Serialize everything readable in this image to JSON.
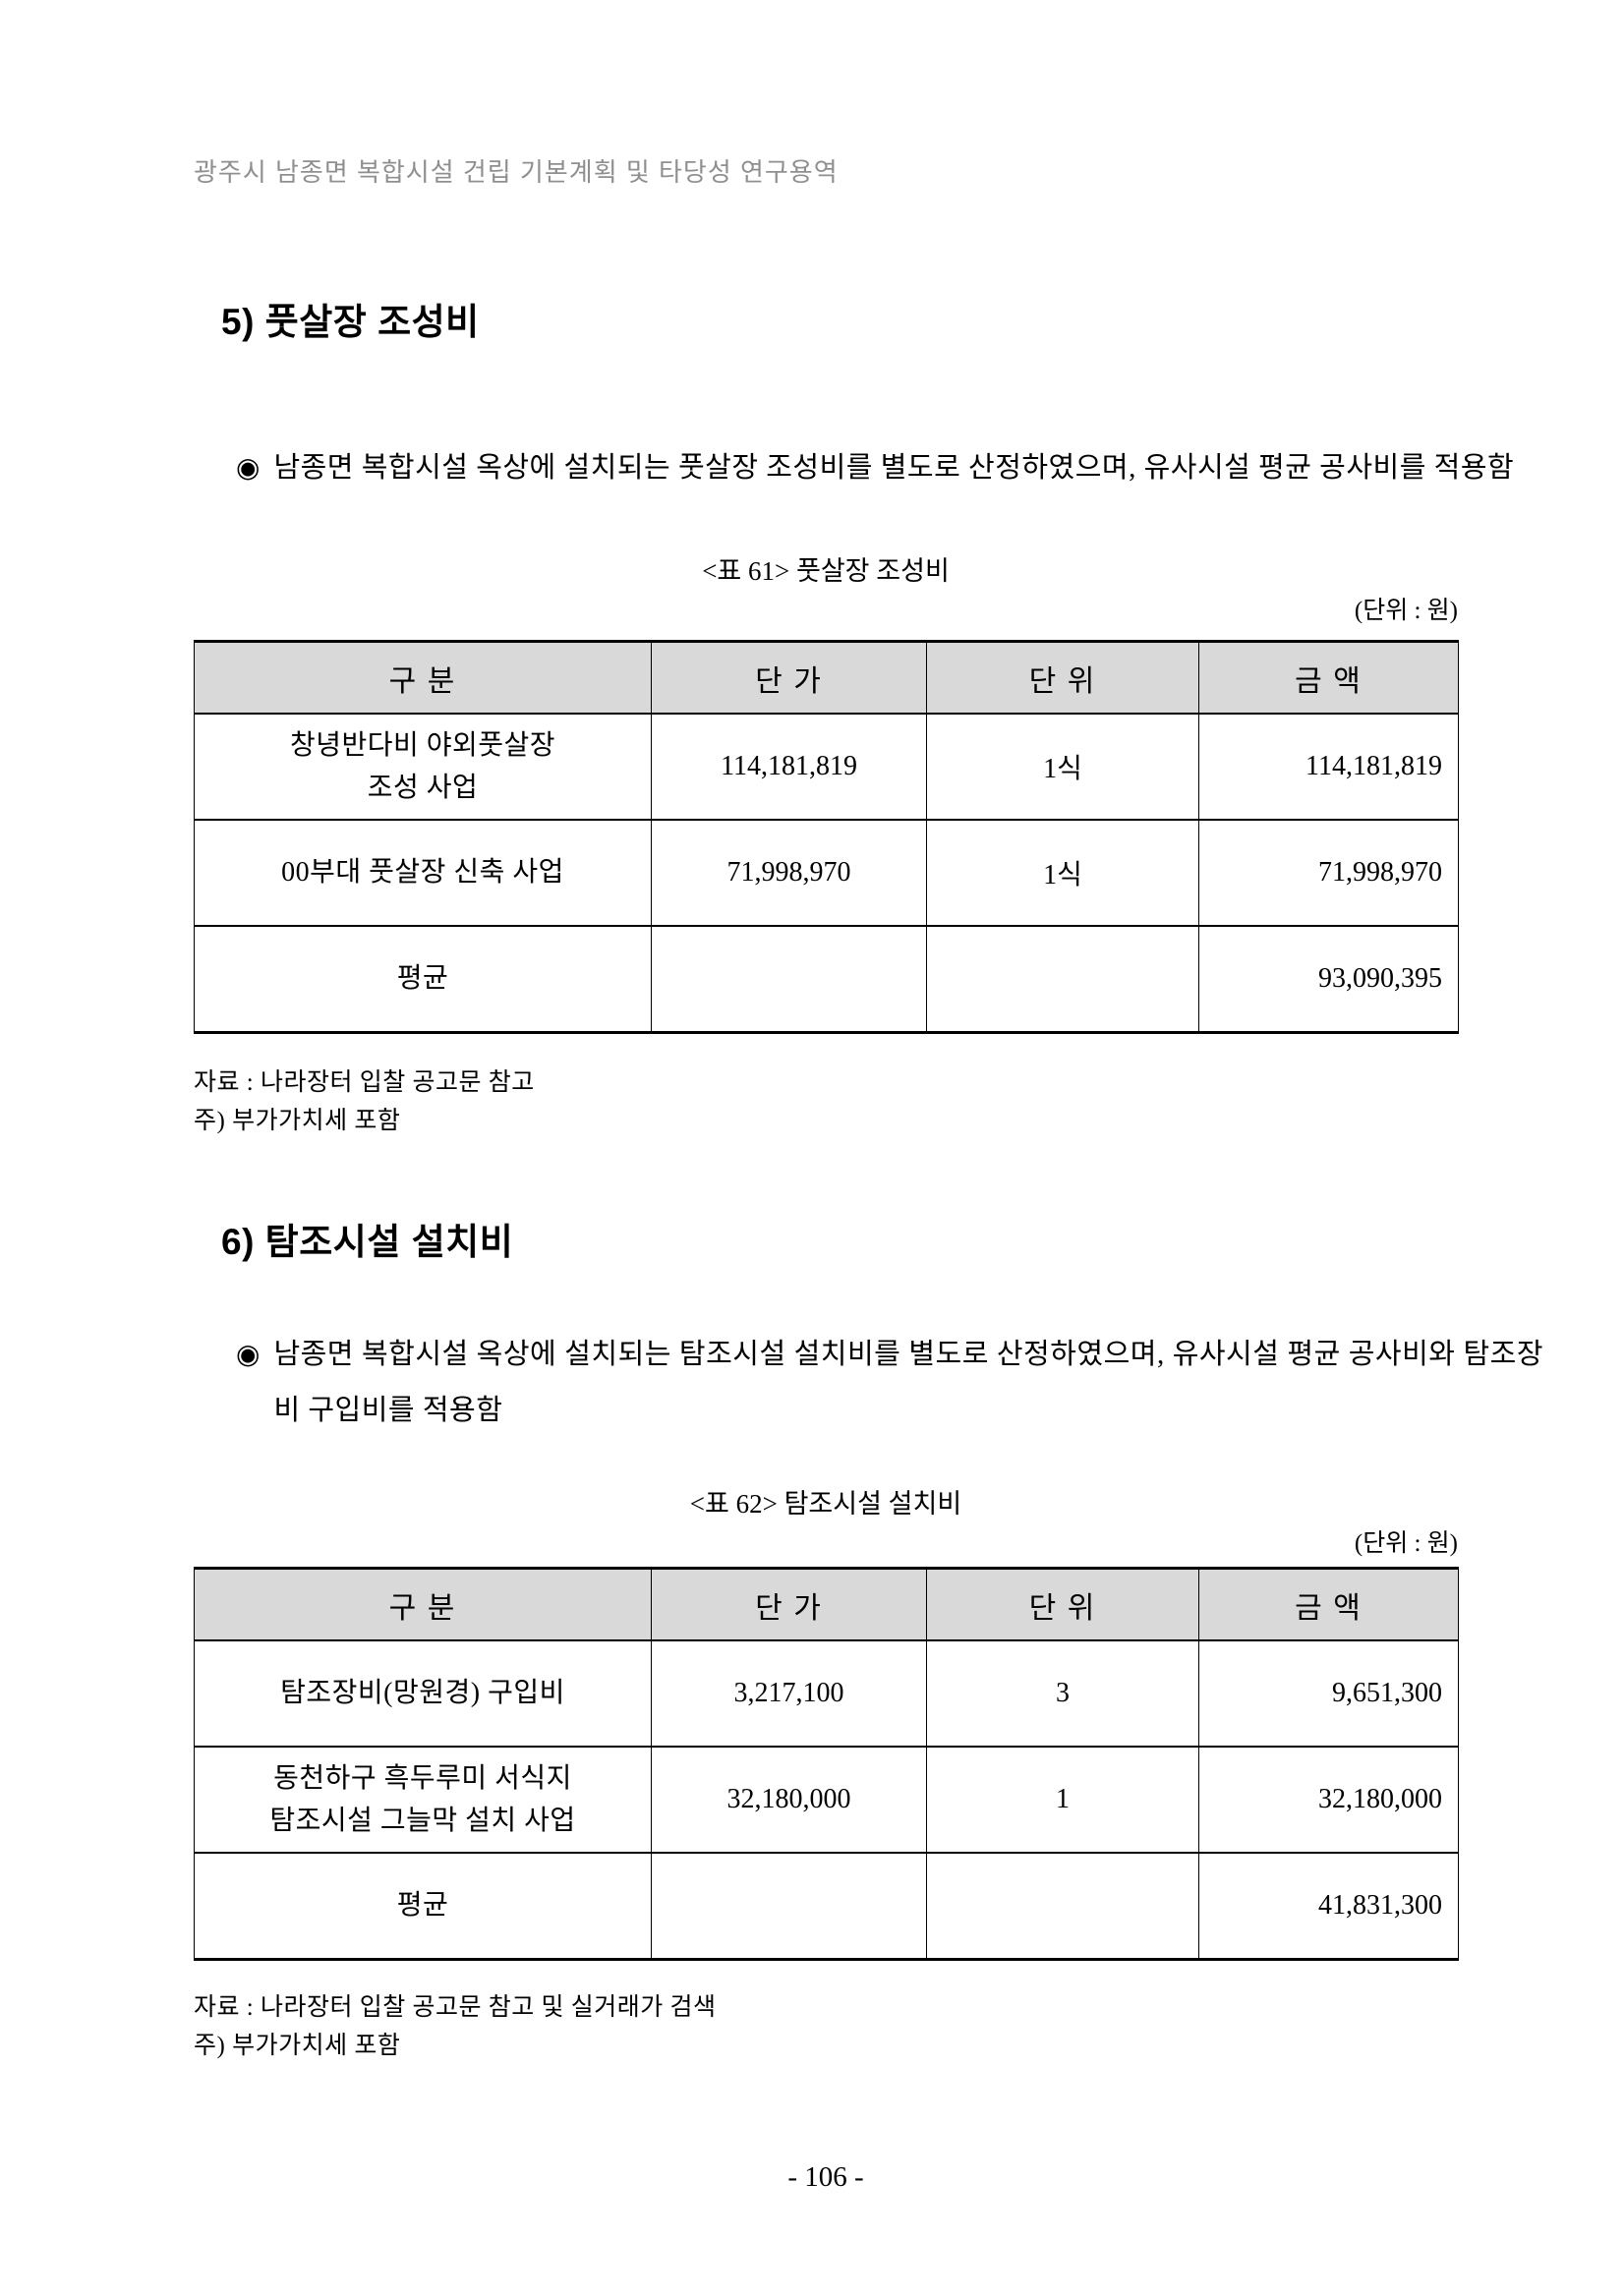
{
  "page": {
    "running_header": "광주시 남종면 복합시설 건립 기본계획 및 타당성 연구용역",
    "page_number": "- 106 -"
  },
  "colors": {
    "table_header_bg": "#d9d9d9",
    "running_header_text": "#8f8f8f",
    "table_border": "#000000"
  },
  "bullet_glyph": "◉",
  "section5": {
    "heading": "5) 풋살장 조성비",
    "bullet": "남종면 복합시설 옥상에 설치되는 풋살장 조성비를 별도로 산정하였으며, 유사시설 평균 공사비를 적용함",
    "table": {
      "caption": "<표 61> 풋살장 조성비",
      "unit_label": "(단위 : 원)",
      "headers": [
        "구 분",
        "단 가",
        "단 위",
        "금 액"
      ],
      "rows": [
        {
          "category": "창녕반다비 야외풋살장\n조성 사업",
          "unit_price": "114,181,819",
          "unit": "1식",
          "amount": "114,181,819"
        },
        {
          "category": "00부대 풋살장 신축 사업",
          "unit_price": "71,998,970",
          "unit": "1식",
          "amount": "71,998,970"
        },
        {
          "category": "평균",
          "unit_price": "",
          "unit": "",
          "amount": "93,090,395"
        }
      ],
      "source_note": "자료 : 나라장터 입찰 공고문 참고",
      "vat_note": "주) 부가가치세 포함"
    }
  },
  "section6": {
    "heading": "6) 탐조시설 설치비",
    "bullet": "남종면 복합시설 옥상에 설치되는 탐조시설 설치비를 별도로 산정하였으며, 유사시설 평균 공사비와 탐조장비 구입비를 적용함",
    "table": {
      "caption": "<표 62> 탐조시설 설치비",
      "unit_label": "(단위 : 원)",
      "headers": [
        "구 분",
        "단 가",
        "단 위",
        "금 액"
      ],
      "rows": [
        {
          "category": "탐조장비(망원경) 구입비",
          "unit_price": "3,217,100",
          "unit": "3",
          "amount": "9,651,300"
        },
        {
          "category": "동천하구 흑두루미 서식지\n탐조시설 그늘막 설치 사업",
          "unit_price": "32,180,000",
          "unit": "1",
          "amount": "32,180,000"
        },
        {
          "category": "평균",
          "unit_price": "",
          "unit": "",
          "amount": "41,831,300"
        }
      ],
      "source_note": "자료 : 나라장터 입찰 공고문 참고 및 실거래가 검색",
      "vat_note": "주) 부가가치세 포함"
    }
  }
}
